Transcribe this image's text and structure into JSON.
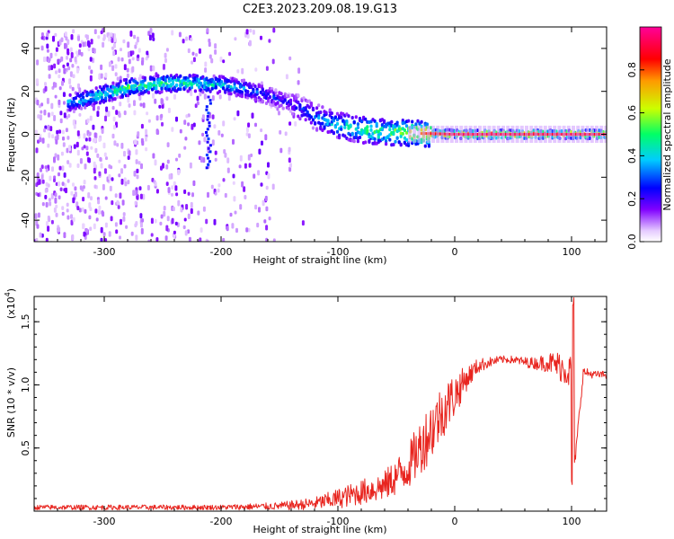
{
  "title": "C2E3.2023.209.08.19.G13",
  "colors": {
    "snr_line": "#e8251f",
    "colormap": [
      "#ffffff",
      "#d9b3ff",
      "#7f00ff",
      "#0000ff",
      "#00bfff",
      "#00ff66",
      "#ccff00",
      "#ff9900",
      "#ff0000",
      "#ff00aa"
    ]
  },
  "chart_data": [
    {
      "type": "heatmap",
      "xlabel": "Height of straight line (km)",
      "ylabel": "Frequency (Hz)",
      "xlim": [
        -360,
        130
      ],
      "ylim": [
        -50,
        50
      ],
      "xticks": [
        -300,
        -200,
        -100,
        0,
        100
      ],
      "xtick_labels": [
        "-300",
        "-200",
        "-100",
        "0",
        "100"
      ],
      "yticks": [
        -40,
        -20,
        0,
        20,
        40
      ],
      "ytick_labels": [
        "-40",
        "-20",
        "0",
        "20",
        "40"
      ],
      "grid": false,
      "colorbar": {
        "label": "Normalized spectral amplitude",
        "range": [
          0.0,
          1.0
        ],
        "ticks": [
          0.0,
          0.2,
          0.4,
          0.6,
          0.8
        ],
        "tick_labels": [
          "0.0",
          "0.2",
          "0.4",
          "0.6",
          "0.8"
        ]
      },
      "ridge": {
        "x": [
          -330,
          -320,
          -300,
          -280,
          -260,
          -240,
          -220,
          -200,
          -180,
          -160,
          -140,
          -130,
          -120,
          -100,
          -80,
          -60,
          -40,
          -20,
          0,
          20,
          40,
          60,
          80,
          100,
          120,
          130
        ],
        "frequency": [
          15,
          16,
          19,
          22,
          23,
          24,
          23.5,
          23,
          21,
          18,
          14,
          11,
          8,
          4,
          2,
          1,
          0.5,
          0.3,
          0,
          0,
          0,
          0,
          0,
          0,
          0,
          0
        ],
        "amplitude": [
          0.4,
          0.45,
          0.5,
          0.55,
          0.55,
          0.55,
          0.5,
          0.45,
          0.35,
          0.3,
          0.25,
          0.3,
          0.35,
          0.45,
          0.55,
          0.6,
          0.7,
          0.85,
          0.9,
          0.9,
          0.9,
          0.88,
          0.88,
          0.9,
          0.88,
          0.88
        ]
      }
    },
    {
      "type": "line",
      "xlabel": "Height of straight line (km)",
      "ylabel": "SNR (10 * v/v)",
      "scale_label": "(x10",
      "scale_exponent": "4",
      "xlim": [
        -360,
        130
      ],
      "ylim": [
        0,
        1.7
      ],
      "xticks": [
        -300,
        -200,
        -100,
        0,
        100
      ],
      "xtick_labels": [
        "-300",
        "-200",
        "-100",
        "0",
        "100"
      ],
      "yticks": [
        0.5,
        1.0,
        1.5
      ],
      "ytick_labels": [
        "0.5",
        "1.0",
        "1.5"
      ],
      "grid": false,
      "series": [
        {
          "x": [
            -360,
            -300,
            -250,
            -200,
            -150,
            -120,
            -100,
            -80,
            -60,
            -40,
            -30,
            -20,
            -10,
            0,
            10,
            20,
            30,
            40,
            50,
            60,
            70,
            80,
            90,
            100,
            101,
            110,
            120,
            130
          ],
          "mean": [
            0.03,
            0.03,
            0.03,
            0.03,
            0.04,
            0.06,
            0.1,
            0.15,
            0.2,
            0.35,
            0.5,
            0.65,
            0.8,
            0.92,
            1.05,
            1.15,
            1.18,
            1.2,
            1.2,
            1.18,
            1.17,
            1.18,
            1.15,
            1.1,
            0.2,
            1.1,
            1.08,
            1.08
          ],
          "noise": [
            0.02,
            0.02,
            0.02,
            0.02,
            0.03,
            0.05,
            0.08,
            0.1,
            0.12,
            0.18,
            0.22,
            0.25,
            0.22,
            0.18,
            0.1,
            0.06,
            0.04,
            0.03,
            0.03,
            0.04,
            0.05,
            0.08,
            0.12,
            0.15,
            0.05,
            0.04,
            0.03,
            0.03
          ]
        }
      ]
    }
  ]
}
